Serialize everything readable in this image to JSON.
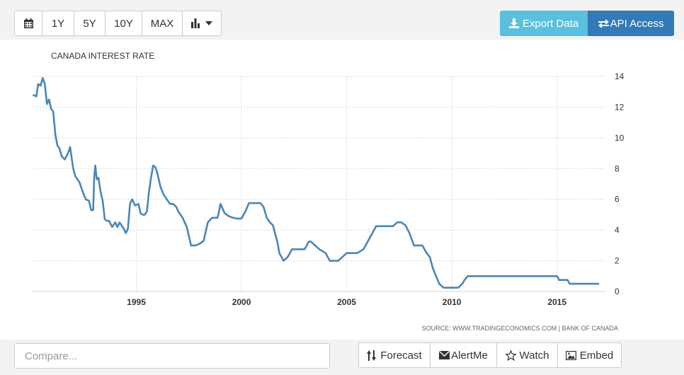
{
  "toolbar": {
    "calendar_icon": "calendar-icon",
    "ranges": [
      "1Y",
      "5Y",
      "10Y",
      "MAX"
    ],
    "chart_type_icon": "bar-chart-icon",
    "export_label": "Export Data",
    "api_label": "API Access"
  },
  "footer": {
    "compare_placeholder": "Compare...",
    "forecast_label": "Forecast",
    "alert_label": "AlertMe",
    "watch_label": "Watch",
    "embed_label": "Embed"
  },
  "colors": {
    "line": "#4a86b8",
    "export_bg": "#5bc0de",
    "api_bg": "#337ab7"
  },
  "chart_data": {
    "type": "line",
    "title": "CANADA INTEREST RATE",
    "source": "SOURCE: WWW.TRADINGECONOMICS.COM | BANK OF CANADA",
    "x_ticks": [
      1995,
      2000,
      2005,
      2010,
      2015
    ],
    "y_ticks": [
      0,
      2,
      4,
      6,
      8,
      10,
      12,
      14
    ],
    "xlim": [
      1990.0,
      2017.3
    ],
    "ylim": [
      0,
      14
    ],
    "grid": true,
    "series": [
      {
        "x": [
          1990.08,
          1990.25,
          1990.33,
          1990.45,
          1990.55,
          1990.65,
          1990.75,
          1990.85,
          1990.95,
          1991.05,
          1991.15,
          1991.25,
          1991.35,
          1991.45,
          1991.6,
          1991.75,
          1991.85,
          1992.0,
          1992.1,
          1992.2,
          1992.3,
          1992.45,
          1992.6,
          1992.75,
          1992.85,
          1992.95,
          1993.0,
          1993.05,
          1993.12,
          1993.2,
          1993.3,
          1993.4,
          1993.5,
          1993.6,
          1993.7,
          1993.85,
          1994.0,
          1994.1,
          1994.2,
          1994.3,
          1994.4,
          1994.5,
          1994.6,
          1994.7,
          1994.8,
          1994.95,
          1995.1,
          1995.2,
          1995.3,
          1995.4,
          1995.5,
          1995.6,
          1995.7,
          1995.8,
          1995.9,
          1996.0,
          1996.15,
          1996.3,
          1996.45,
          1996.6,
          1996.75,
          1996.9,
          1997.0,
          1997.2,
          1997.4,
          1997.6,
          1997.8,
          1998.0,
          1998.2,
          1998.4,
          1998.6,
          1998.75,
          1998.85,
          1998.9,
          1999.0,
          1999.2,
          1999.4,
          1999.6,
          1999.8,
          2000.0,
          2000.2,
          2000.35,
          2000.5,
          2000.6,
          2000.75,
          2000.9,
          2001.05,
          2001.2,
          2001.35,
          2001.5,
          2001.6,
          2001.7,
          2001.8,
          2001.9,
          2002.0,
          2002.2,
          2002.4,
          2002.6,
          2002.75,
          2003.0,
          2003.2,
          2003.3,
          2003.5,
          2003.7,
          2004.0,
          2004.2,
          2004.4,
          2004.6,
          2004.8,
          2005.0,
          2005.2,
          2005.5,
          2005.8,
          2006.0,
          2006.2,
          2006.4,
          2006.6,
          2006.8,
          2007.0,
          2007.2,
          2007.4,
          2007.6,
          2007.8,
          2008.0,
          2008.2,
          2008.4,
          2008.6,
          2008.8,
          2008.95,
          2009.1,
          2009.25,
          2009.4,
          2009.6,
          2009.8,
          2010.0,
          2010.3,
          2010.5,
          2010.6,
          2010.75,
          2011.0,
          2012.0,
          2013.0,
          2014.0,
          2015.0,
          2015.1,
          2015.5,
          2015.6,
          2016.0,
          2016.5,
          2017.0
        ],
        "values": [
          12.8,
          12.7,
          13.5,
          13.4,
          13.9,
          13.5,
          12.2,
          12.5,
          11.9,
          11.7,
          10.2,
          9.5,
          9.3,
          8.8,
          8.6,
          9.0,
          9.4,
          8.0,
          7.5,
          7.3,
          7.1,
          6.5,
          6.0,
          5.9,
          5.3,
          5.3,
          7.5,
          8.2,
          7.3,
          7.4,
          6.5,
          5.9,
          4.7,
          4.6,
          4.6,
          4.2,
          4.5,
          4.2,
          4.5,
          4.3,
          4.1,
          3.8,
          4.1,
          5.7,
          6.0,
          5.6,
          5.7,
          5.1,
          5.0,
          5.0,
          5.2,
          6.5,
          7.4,
          8.2,
          8.1,
          7.7,
          6.8,
          6.3,
          6.0,
          5.7,
          5.7,
          5.5,
          5.2,
          4.8,
          4.2,
          3.0,
          3.0,
          3.1,
          3.3,
          4.5,
          4.8,
          4.8,
          4.8,
          5.0,
          5.7,
          5.1,
          4.9,
          4.8,
          4.75,
          4.75,
          5.25,
          5.75,
          5.75,
          5.75,
          5.75,
          5.75,
          5.5,
          4.8,
          4.5,
          4.3,
          3.75,
          3.25,
          2.5,
          2.25,
          2.0,
          2.25,
          2.75,
          2.75,
          2.75,
          2.75,
          3.25,
          3.25,
          3.0,
          2.75,
          2.5,
          2.0,
          2.0,
          2.0,
          2.25,
          2.5,
          2.5,
          2.5,
          2.75,
          3.25,
          3.75,
          4.25,
          4.25,
          4.25,
          4.25,
          4.25,
          4.5,
          4.5,
          4.3,
          3.75,
          3.0,
          3.0,
          3.0,
          2.5,
          2.25,
          1.5,
          1.0,
          0.5,
          0.25,
          0.25,
          0.25,
          0.25,
          0.5,
          0.75,
          1.0,
          1.0,
          1.0,
          1.0,
          1.0,
          1.0,
          0.75,
          0.75,
          0.5,
          0.5,
          0.5,
          0.5
        ]
      }
    ]
  }
}
